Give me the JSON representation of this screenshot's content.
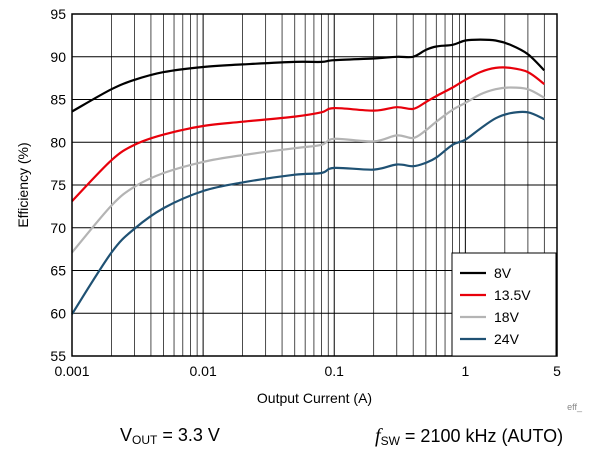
{
  "chart_data": {
    "type": "line",
    "xlabel": "Output Current (A)",
    "ylabel": "Efficiency (%)",
    "x_scale": "log",
    "xlim": [
      0.001,
      5
    ],
    "ylim": [
      55,
      95
    ],
    "x_ticks": [
      {
        "value": 0.001,
        "label": "0.001"
      },
      {
        "value": 0.01,
        "label": "0.01"
      },
      {
        "value": 0.1,
        "label": "0.1"
      },
      {
        "value": 1,
        "label": "1"
      },
      {
        "value": 5,
        "label": "5"
      }
    ],
    "y_ticks": [
      55,
      60,
      65,
      70,
      75,
      80,
      85,
      90,
      95
    ],
    "grid": true,
    "legend_position": "bottom-right",
    "series": [
      {
        "name": "8V",
        "color": "#000000",
        "x": [
          0.001,
          0.002,
          0.003,
          0.005,
          0.01,
          0.02,
          0.05,
          0.08,
          0.1,
          0.2,
          0.3,
          0.4,
          0.5,
          0.6,
          0.8,
          1.0,
          1.3,
          1.7,
          2.2,
          3.0,
          4.0
        ],
        "y": [
          83.6,
          86.2,
          87.3,
          88.2,
          88.8,
          89.1,
          89.4,
          89.4,
          89.6,
          89.8,
          90.0,
          90.0,
          90.8,
          91.2,
          91.4,
          91.9,
          92.0,
          91.9,
          91.4,
          90.3,
          88.4
        ]
      },
      {
        "name": "13.5V",
        "color": "#e8000b",
        "x": [
          0.001,
          0.002,
          0.003,
          0.005,
          0.01,
          0.02,
          0.05,
          0.08,
          0.1,
          0.2,
          0.3,
          0.4,
          0.5,
          0.6,
          0.8,
          1.0,
          1.3,
          1.7,
          2.2,
          3.0,
          4.0
        ],
        "y": [
          73.1,
          77.9,
          79.7,
          80.9,
          81.9,
          82.4,
          83.0,
          83.5,
          84.0,
          83.7,
          84.1,
          83.9,
          84.7,
          85.4,
          86.4,
          87.3,
          88.2,
          88.7,
          88.7,
          88.2,
          86.8
        ]
      },
      {
        "name": "18V",
        "color": "#b4b4b4",
        "x": [
          0.001,
          0.002,
          0.003,
          0.005,
          0.01,
          0.02,
          0.05,
          0.08,
          0.1,
          0.2,
          0.3,
          0.4,
          0.5,
          0.6,
          0.8,
          1.0,
          1.3,
          1.7,
          2.2,
          3.0,
          4.0
        ],
        "y": [
          67.1,
          72.6,
          74.8,
          76.4,
          77.7,
          78.5,
          79.3,
          79.7,
          80.4,
          80.1,
          80.8,
          80.5,
          81.4,
          82.4,
          83.8,
          84.6,
          85.6,
          86.2,
          86.4,
          86.2,
          85.2
        ]
      },
      {
        "name": "24V",
        "color": "#1f5173",
        "x": [
          0.001,
          0.002,
          0.003,
          0.005,
          0.01,
          0.02,
          0.05,
          0.08,
          0.1,
          0.2,
          0.3,
          0.4,
          0.5,
          0.6,
          0.8,
          1.0,
          1.3,
          1.7,
          2.2,
          3.0,
          4.0
        ],
        "y": [
          59.9,
          67.1,
          69.9,
          72.3,
          74.3,
          75.3,
          76.2,
          76.4,
          77.0,
          76.8,
          77.4,
          77.2,
          77.6,
          78.2,
          79.7,
          80.3,
          81.6,
          82.8,
          83.4,
          83.5,
          82.7
        ]
      }
    ]
  },
  "conditions": {
    "vout": {
      "symbol": "V",
      "sub": "OUT",
      "value": "= 3.3 V"
    },
    "fsw": {
      "symbol": "f",
      "sub": "SW",
      "value": "= 2100 kHz (AUTO)"
    }
  },
  "figure_tag": "eff_"
}
